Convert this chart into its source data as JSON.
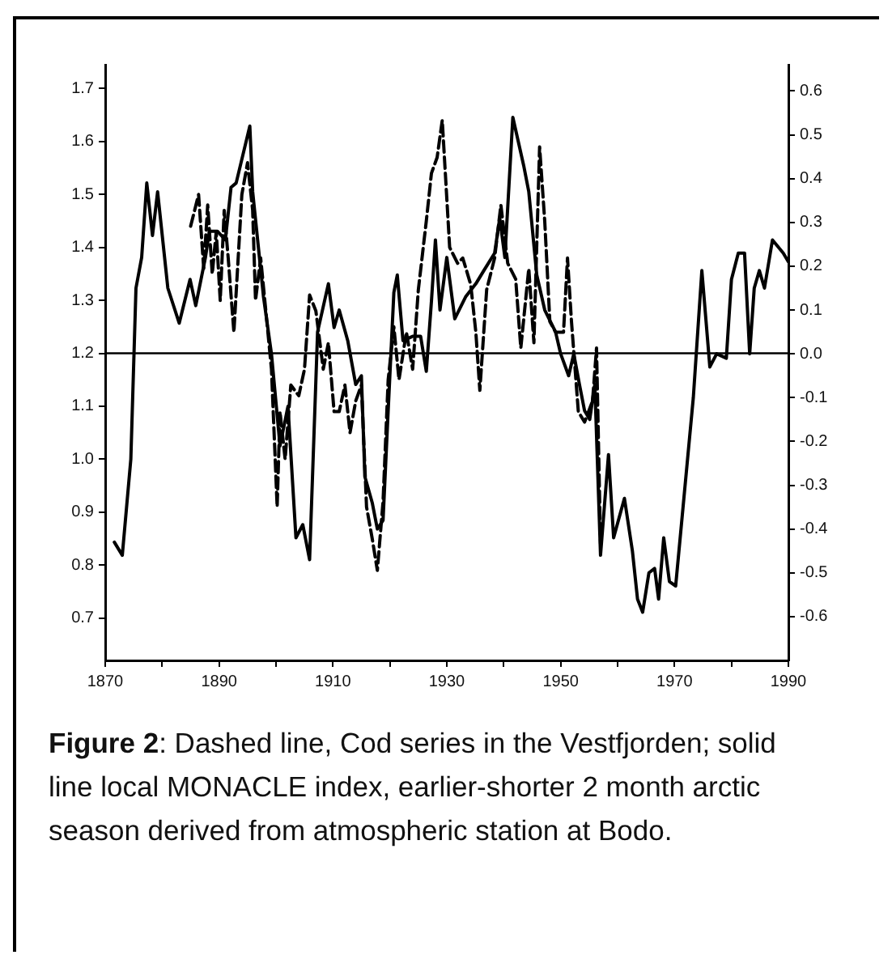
{
  "chart_data": {
    "type": "line",
    "annotations": [
      "Figure 2: Dashed line, Cod series in the Vestfjorden; solid line local MONACLE index, earlier-shorter 2 month arctic season derived from atmospheric station at Bodo."
    ],
    "xlim": [
      1870,
      1990
    ],
    "xticks": [
      1870,
      {
        "value": 1880,
        "label": null
      },
      1890,
      {
        "value": 1900,
        "label": null
      },
      1910,
      {
        "value": 1920,
        "label": null
      },
      1930,
      {
        "value": 1940,
        "label": null
      },
      1950,
      {
        "value": 1960,
        "label": null
      },
      1970,
      {
        "value": 1980,
        "label": null
      },
      1990
    ],
    "ylim": [
      0.62,
      1.745
    ],
    "yticks": [
      0.7,
      0.8,
      0.9,
      {
        "value": 1,
        "label": "1.0"
      },
      1.1,
      1.2,
      1.3,
      1.4,
      1.5,
      1.6,
      1.7
    ],
    "y2lim": [
      -0.7,
      0.66
    ],
    "y2ticks": [
      -0.6,
      -0.5,
      -0.4,
      -0.3,
      -0.2,
      -0.1,
      {
        "value": 0,
        "label": "0.0"
      },
      0.1,
      0.2,
      0.3,
      0.4,
      0.5,
      0.6
    ],
    "grid": false,
    "legend": false,
    "marker": "none",
    "ref_lines": [
      {
        "axis": "y",
        "value": 1.2,
        "color": "#000000"
      }
    ],
    "series": [
      {
        "color": "#000000",
        "axis": "y2",
        "line_style": "solid",
        "x": [
          1871.6,
          1873,
          1874.5,
          1875.4,
          1876.4,
          1877.3,
          1878.3,
          1879.2,
          1881,
          1883,
          1884.9,
          1885.9,
          1887.6,
          1888.3,
          1889.7,
          1891.1,
          1892.1,
          1893,
          1895.4,
          1895.9,
          1897.8,
          1899.2,
          1900.7,
          1902.1,
          1903.5,
          1904.7,
          1905.9,
          1907.3,
          1909.2,
          1910.2,
          1911.1,
          1912.6,
          1914,
          1915,
          1915.6,
          1916.9,
          1917.8,
          1918.8,
          1919.7,
          1920.7,
          1921.3,
          1922.3,
          1924,
          1925.4,
          1926.4,
          1927.3,
          1928,
          1928.8,
          1930,
          1931.4,
          1933.3,
          1935.1,
          1936.5,
          1938.4,
          1939.3,
          1940.2,
          1941.6,
          1943.5,
          1944.4,
          1945.8,
          1947.2,
          1949.1,
          1950,
          1951.4,
          1952.3,
          1953.3,
          1954.2,
          1955.1,
          1956,
          1957,
          1958.4,
          1959.3,
          1961.2,
          1962.6,
          1963.5,
          1964.4,
          1965.5,
          1966.5,
          1967.2,
          1968.1,
          1969.1,
          1970.2,
          1973.3,
          1974.8,
          1976.2,
          1977.4,
          1979.1,
          1980,
          1981.2,
          1982.3,
          1983.2,
          1984,
          1984.9,
          1985.8,
          1987.2,
          1989.1,
          1990
        ],
        "values": [
          -0.43,
          -0.46,
          -0.24,
          0.15,
          0.22,
          0.39,
          0.27,
          0.37,
          0.15,
          0.07,
          0.17,
          0.11,
          0.22,
          0.28,
          0.28,
          0.26,
          0.38,
          0.39,
          0.52,
          0.37,
          0.13,
          0,
          -0.21,
          -0.12,
          -0.42,
          -0.39,
          -0.47,
          0.05,
          0.16,
          0.06,
          0.1,
          0.03,
          -0.07,
          -0.05,
          -0.28,
          -0.34,
          -0.4,
          -0.38,
          -0.13,
          0.14,
          0.18,
          0.03,
          0.04,
          0.04,
          -0.04,
          0.12,
          0.26,
          0.1,
          0.22,
          0.08,
          0.13,
          0.16,
          0.19,
          0.23,
          0.31,
          0.22,
          0.54,
          0.43,
          0.37,
          0.18,
          0.1,
          0.05,
          0,
          -0.05,
          0,
          -0.07,
          -0.13,
          -0.15,
          -0.07,
          -0.46,
          -0.23,
          -0.42,
          -0.33,
          -0.45,
          -0.56,
          -0.59,
          -0.5,
          -0.49,
          -0.56,
          -0.42,
          -0.52,
          -0.53,
          -0.1,
          0.19,
          -0.03,
          0,
          -0.01,
          0.17,
          0.23,
          0.23,
          0,
          0.15,
          0.19,
          0.15,
          0.26,
          0.23,
          0.21
        ]
      },
      {
        "color": "#000000",
        "axis": "y",
        "line_style": "dashed",
        "x": [
          1885,
          1886.4,
          1887.3,
          1888,
          1888.8,
          1889.5,
          1890.2,
          1890.9,
          1891.6,
          1892.6,
          1894,
          1895,
          1895.9,
          1896.4,
          1897.3,
          1898.3,
          1899.2,
          1900.2,
          1900.7,
          1901.6,
          1902.6,
          1904,
          1905,
          1905.9,
          1907,
          1908.3,
          1909.2,
          1910.2,
          1911.1,
          1912.1,
          1913,
          1914,
          1915,
          1915.9,
          1916.9,
          1917.8,
          1918.8,
          1919.7,
          1920.7,
          1921.6,
          1922.9,
          1924,
          1925,
          1926.4,
          1927.3,
          1928.3,
          1929.2,
          1930.5,
          1931.9,
          1932.8,
          1934.2,
          1935.1,
          1935.8,
          1937,
          1938.4,
          1939.5,
          1940.7,
          1942.1,
          1943,
          1944.4,
          1945.3,
          1946.3,
          1947.2,
          1948.1,
          1949.1,
          1950.5,
          1951.2,
          1951.9,
          1953.1,
          1954.2,
          1955.6,
          1956.3,
          1957
        ],
        "values": [
          1.44,
          1.5,
          1.36,
          1.48,
          1.35,
          1.43,
          1.3,
          1.47,
          1.38,
          1.24,
          1.5,
          1.56,
          1.47,
          1.3,
          1.38,
          1.27,
          1.17,
          0.91,
          1.09,
          1,
          1.14,
          1.12,
          1.17,
          1.31,
          1.28,
          1.17,
          1.22,
          1.09,
          1.09,
          1.14,
          1.05,
          1.11,
          1.14,
          0.91,
          0.85,
          0.79,
          0.92,
          1.15,
          1.25,
          1.15,
          1.24,
          1.17,
          1.32,
          1.45,
          1.54,
          1.57,
          1.64,
          1.4,
          1.37,
          1.38,
          1.33,
          1.24,
          1.13,
          1.32,
          1.38,
          1.48,
          1.37,
          1.34,
          1.21,
          1.36,
          1.22,
          1.59,
          1.45,
          1.26,
          1.24,
          1.24,
          1.38,
          1.26,
          1.09,
          1.07,
          1.11,
          1.21,
          0.84
        ]
      }
    ]
  }
}
